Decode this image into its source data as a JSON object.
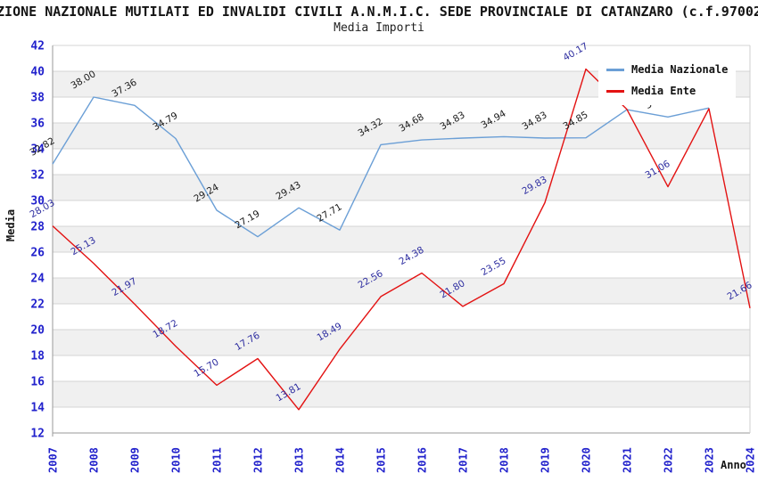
{
  "chart_data": {
    "type": "line",
    "title": "ZIONE NAZIONALE MUTILATI ED INVALIDI CIVILI A.N.M.I.C. SEDE PROVINCIALE DI CATANZARO (c.f.97002",
    "subtitle": "Media Importi",
    "xlabel": "Anno",
    "ylabel": "Media",
    "x": [
      2007,
      2008,
      2009,
      2010,
      2011,
      2012,
      2013,
      2014,
      2015,
      2016,
      2017,
      2018,
      2019,
      2020,
      2021,
      2022,
      2023,
      2024
    ],
    "ylim": [
      12,
      42
    ],
    "ytick_step": 2,
    "grid": "horizontal gridlines with alternating shaded bands",
    "legend_position": "top-right",
    "series": [
      {
        "name": "Media Nazionale",
        "color": "#6b9fd6",
        "label_color": "#1a1a1a",
        "values": [
          32.82,
          38.0,
          37.36,
          34.79,
          29.24,
          27.19,
          29.43,
          27.71,
          34.32,
          34.68,
          34.83,
          34.94,
          34.83,
          34.85,
          37.03,
          36.46,
          37.16,
          null
        ]
      },
      {
        "name": "Media Ente",
        "color": "#e31212",
        "label_color": "#2d2da0",
        "values": [
          28.03,
          25.13,
          21.97,
          18.72,
          15.7,
          17.76,
          13.81,
          18.49,
          22.56,
          24.38,
          21.8,
          23.55,
          29.83,
          40.17,
          37.05,
          31.06,
          37.1,
          21.66
        ]
      }
    ]
  },
  "styles": {
    "axis_tick_color": "#2222cc",
    "band_color": "#f0f0f0",
    "gridline_color": "#d4d4d4",
    "axis_line_color": "#9a9a9a",
    "plot_border_color": "#cfcfcf",
    "background": "#ffffff"
  }
}
